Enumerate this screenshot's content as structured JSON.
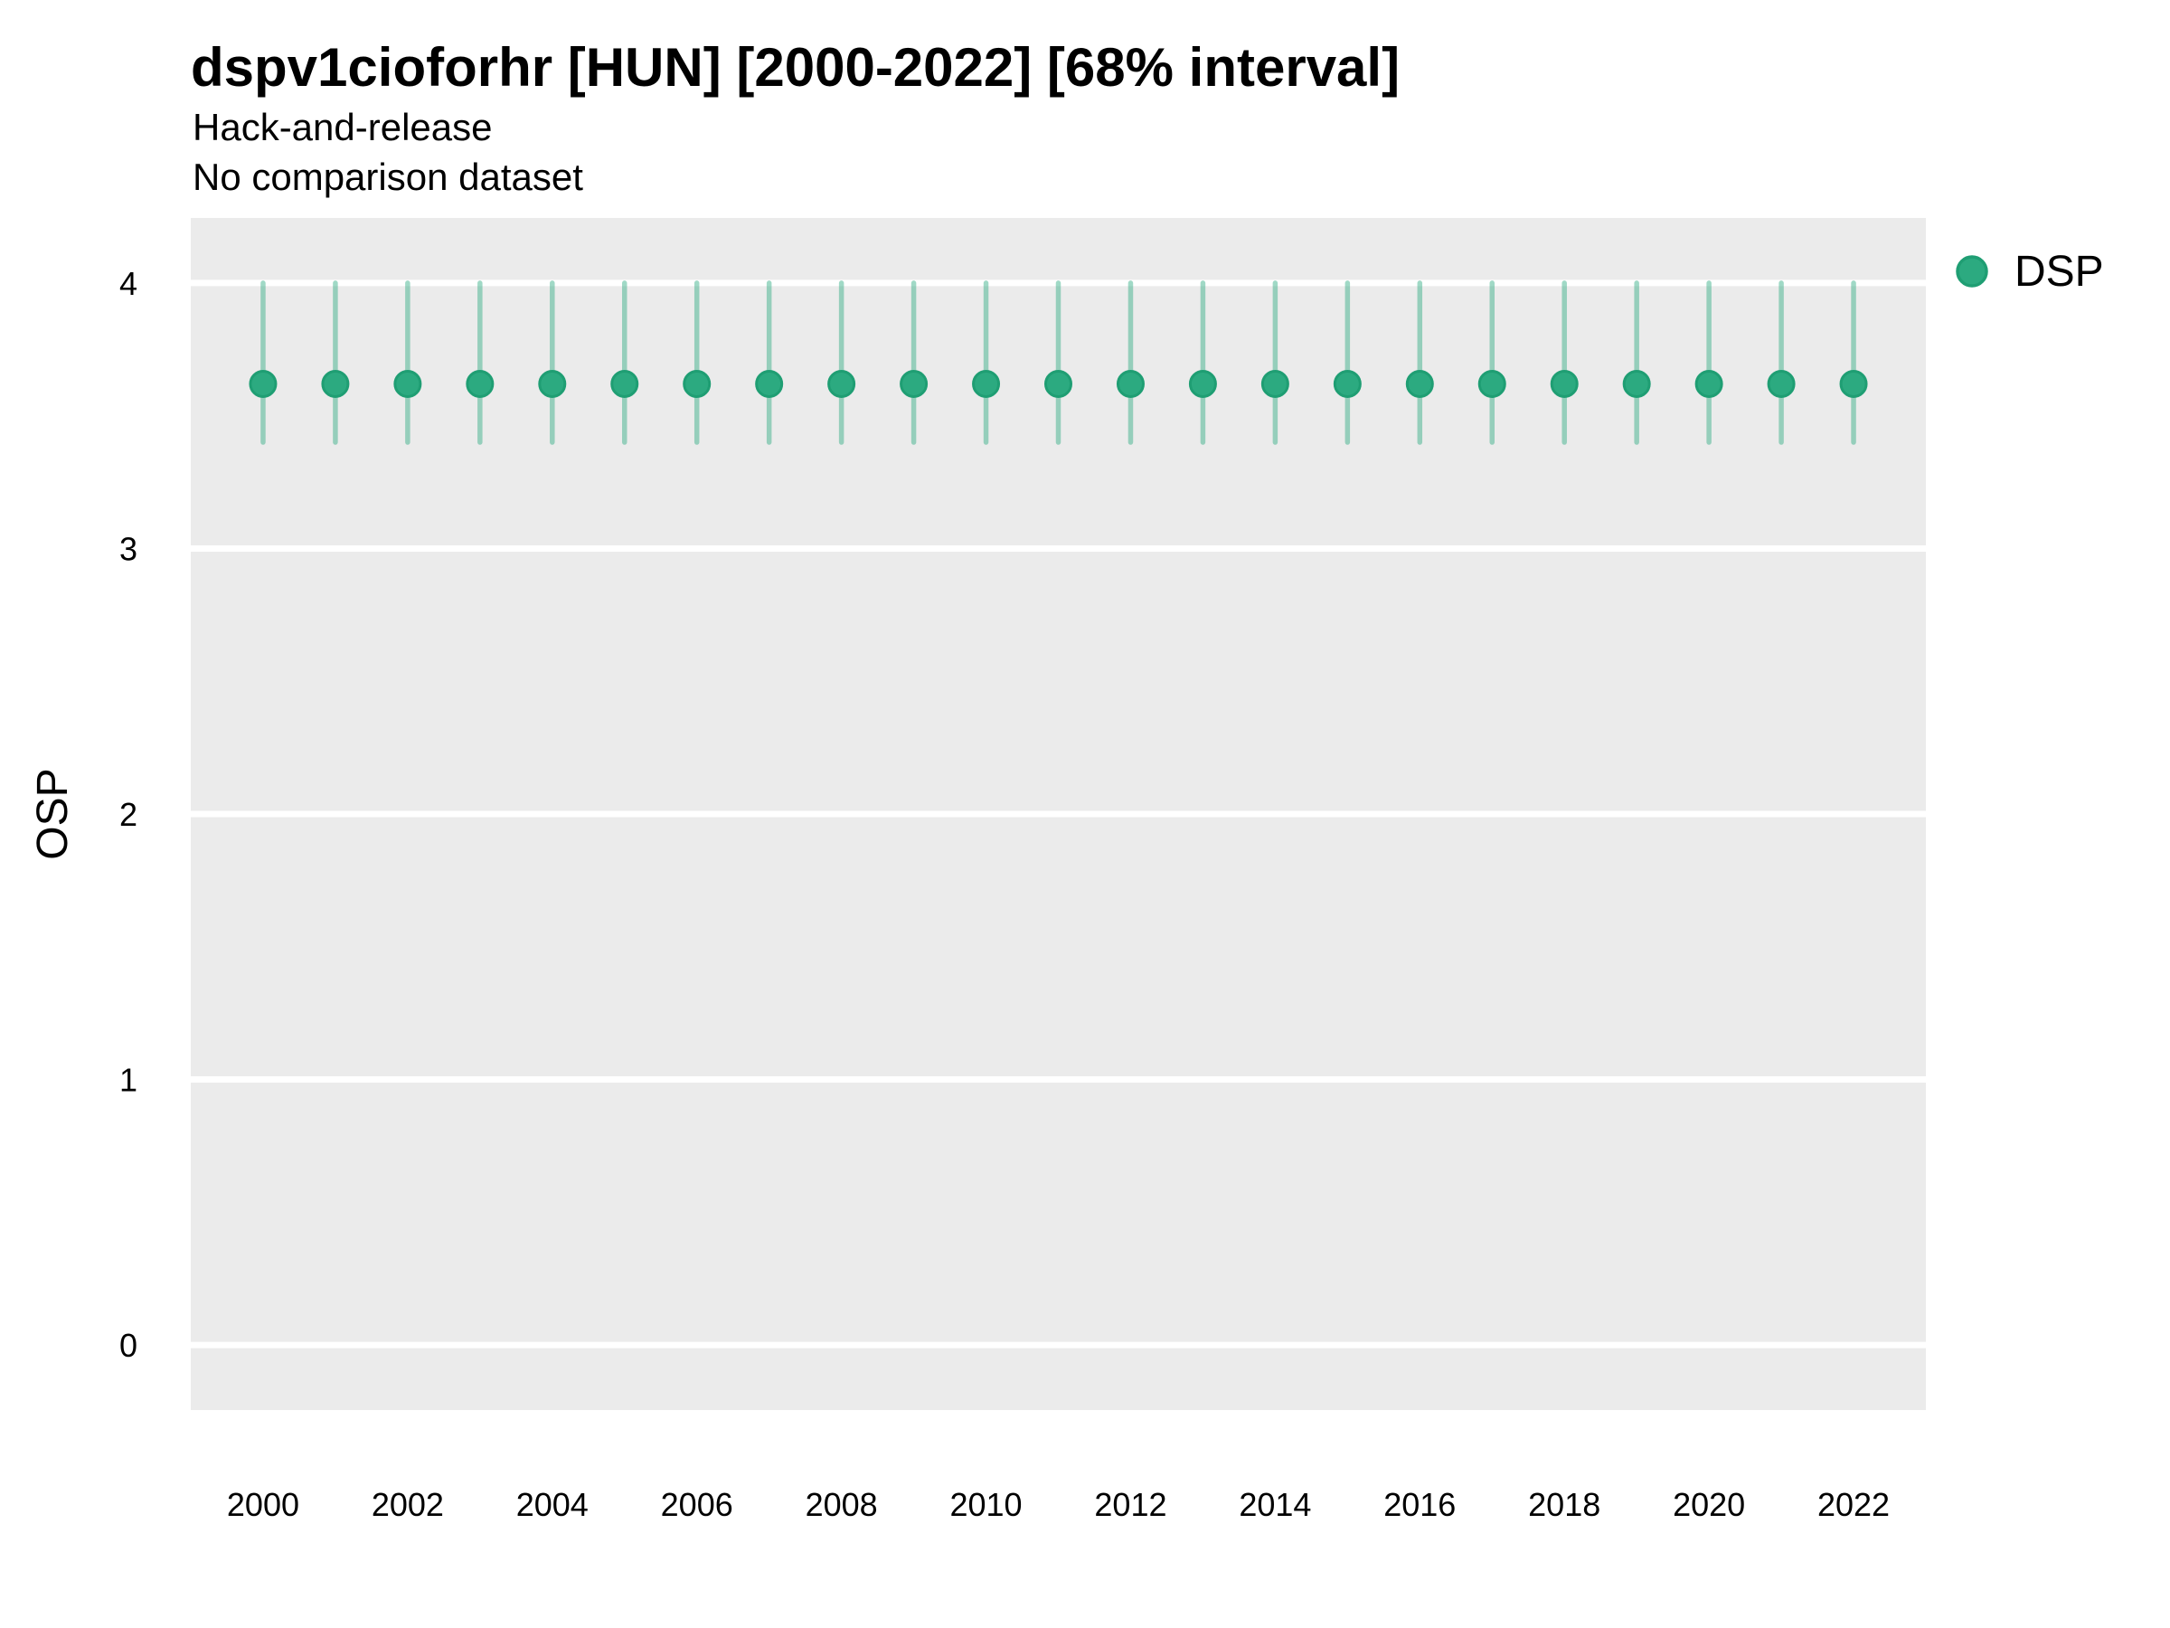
{
  "header": {
    "title": "dspv1cioforhr [HUN] [2000-2022] [68% interval]",
    "subtitle": "Hack-and-release",
    "note": "No comparison dataset"
  },
  "legend": {
    "position": "right-top",
    "items": [
      {
        "label": "DSP",
        "swatch": "circle"
      }
    ]
  },
  "colors": {
    "panel_background": "#ebebeb",
    "gridline": "#ffffff",
    "point_fill": "#2caa80",
    "point_stroke": "#1f9e73",
    "interval_line": "rgba(44,170,128,0.45)",
    "text": "#000000"
  },
  "chart_data": {
    "type": "pointrange",
    "title": "dspv1cioforhr [HUN] [2000-2022] [68% interval]",
    "subtitle": "Hack-and-release",
    "note": "No comparison dataset",
    "xlabel": "",
    "ylabel": "OSP",
    "interval_level": "68%",
    "x_ticks": [
      2000,
      2002,
      2004,
      2006,
      2008,
      2010,
      2012,
      2014,
      2016,
      2018,
      2020,
      2022
    ],
    "y_ticks": [
      0,
      1,
      2,
      3,
      4
    ],
    "x_range": [
      1999,
      2023
    ],
    "y_range": [
      -0.245,
      4.245
    ],
    "grid": "horizontal-major-only",
    "legend_position": "right-top",
    "series": [
      {
        "name": "DSP",
        "x": [
          2000,
          2001,
          2002,
          2003,
          2004,
          2005,
          2006,
          2007,
          2008,
          2009,
          2010,
          2011,
          2012,
          2013,
          2014,
          2015,
          2016,
          2017,
          2018,
          2019,
          2020,
          2021,
          2022
        ],
        "estimate": [
          3.62,
          3.62,
          3.62,
          3.62,
          3.62,
          3.62,
          3.62,
          3.62,
          3.62,
          3.62,
          3.62,
          3.62,
          3.62,
          3.62,
          3.62,
          3.62,
          3.62,
          3.62,
          3.62,
          3.62,
          3.62,
          3.62,
          3.62
        ],
        "lower": [
          3.4,
          3.4,
          3.4,
          3.4,
          3.4,
          3.4,
          3.4,
          3.4,
          3.4,
          3.4,
          3.4,
          3.4,
          3.4,
          3.4,
          3.4,
          3.4,
          3.4,
          3.4,
          3.4,
          3.4,
          3.4,
          3.4,
          3.4
        ],
        "upper": [
          4.0,
          4.0,
          4.0,
          4.0,
          4.0,
          4.0,
          4.0,
          4.0,
          4.0,
          4.0,
          4.0,
          4.0,
          4.0,
          4.0,
          4.0,
          4.0,
          4.0,
          4.0,
          4.0,
          4.0,
          4.0,
          4.0,
          4.0
        ]
      }
    ]
  }
}
